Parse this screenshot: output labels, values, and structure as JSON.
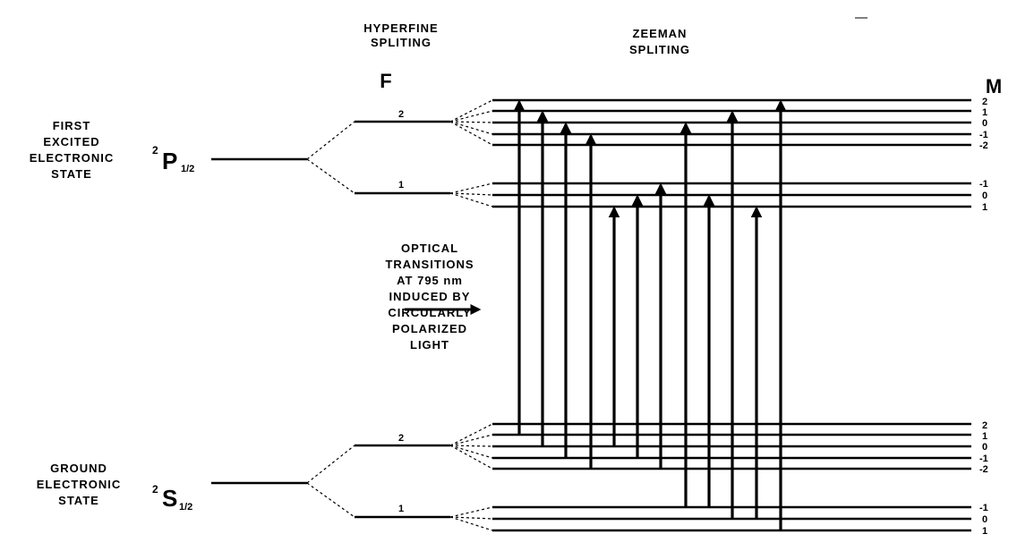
{
  "headers": {
    "hyperfine_line1": "HYPERFINE",
    "hyperfine_line2": "SPLITING",
    "zeeman_line1": "ZEEMAN",
    "zeeman_line2": "SPLITING",
    "f_label": "F",
    "m_label": "M"
  },
  "excited_state": {
    "label_lines": [
      "FIRST",
      "EXCITED",
      "ELECTRONIC",
      "STATE"
    ],
    "term_superscript": "2",
    "term_letter": "P",
    "term_subscript": "1/2",
    "f_levels": [
      "2",
      "1"
    ],
    "m_values_f2": [
      "2",
      "1",
      "0",
      "-1",
      "-2"
    ],
    "m_values_f1": [
      "-1",
      "0",
      "1"
    ]
  },
  "ground_state": {
    "label_lines": [
      "GROUND",
      "ELECTRONIC",
      "STATE"
    ],
    "term_superscript": "2",
    "term_letter": "S",
    "term_subscript": "1/2",
    "f_levels": [
      "2",
      "1"
    ],
    "m_values_f2": [
      "2",
      "1",
      "0",
      "-1",
      "-2"
    ],
    "m_values_f1": [
      "-1",
      "0",
      "1"
    ]
  },
  "optical_note": {
    "lines": [
      "OPTICAL",
      "TRANSITIONS",
      "AT 795 nm",
      "INDUCED BY",
      "CIRCULARLY",
      "POLARIZED",
      "LIGHT"
    ]
  },
  "colors": {
    "ink": "#000000",
    "background": "#ffffff"
  }
}
